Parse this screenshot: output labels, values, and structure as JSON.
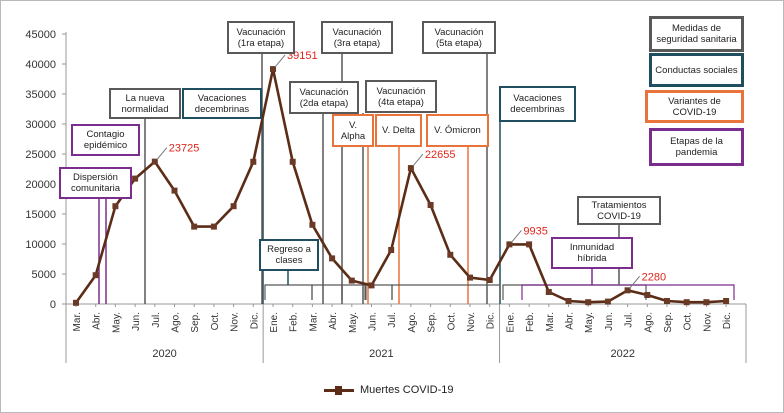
{
  "chart_data": {
    "type": "line",
    "title": "",
    "xlabel": "",
    "ylabel": "",
    "ylim": [
      0,
      45000
    ],
    "yticks": [
      "0",
      "5000",
      "10000",
      "15000",
      "20000",
      "25000",
      "30000",
      "35000",
      "40000",
      "45000"
    ],
    "years": [
      "2020",
      "2021",
      "2022"
    ],
    "months": [
      "Mar.",
      "Abr.",
      "May.",
      "Jun.",
      "Jul.",
      "Ago.",
      "Sep.",
      "Oct.",
      "Nov.",
      "Dic.",
      "Ene.",
      "Feb.",
      "Mar.",
      "Abr.",
      "May.",
      "Jun.",
      "Jul.",
      "Ago.",
      "Sep.",
      "Oct.",
      "Nov.",
      "Dic.",
      "Ene.",
      "Feb.",
      "Mar.",
      "Abr.",
      "May.",
      "Jun.",
      "Jul.",
      "Ago.",
      "Sep.",
      "Oct.",
      "Nov.",
      "Dic."
    ],
    "series": [
      {
        "name": "Muertes COVID-19",
        "color": "#5b2c16",
        "values": [
          200,
          4800,
          16300,
          20900,
          23725,
          18900,
          12900,
          12900,
          16300,
          23700,
          39151,
          23700,
          13200,
          7600,
          3900,
          3100,
          9000,
          22655,
          16500,
          8200,
          4400,
          4000,
          9935,
          9935,
          2000,
          500,
          300,
          400,
          2280,
          1500,
          500,
          300,
          300,
          500
        ]
      }
    ],
    "point_labels": [
      {
        "index": 4,
        "text": "23725",
        "color": "#e0261c"
      },
      {
        "index": 10,
        "text": "39151",
        "color": "#222222"
      },
      {
        "index": 17,
        "text": "22655",
        "color": "#e0261c"
      },
      {
        "index": 22,
        "text": "9935",
        "color": "#e0261c"
      },
      {
        "index": 28,
        "text": "2280",
        "color": "#e0261c"
      }
    ],
    "legend": [
      "Muertes COVID-19"
    ],
    "legend_position": "bottom"
  },
  "annotations": {
    "contagio": "Contagio epidémico",
    "dispersion": "Dispersión comunitaria",
    "nueva_normalidad": "La nueva normalidad",
    "vacaciones_1": "Vacaciones decembrinas",
    "vacunacion_1": "Vacunación (1ra etapa)",
    "vacunacion_2": "Vacunación (2da etapa)",
    "vacunacion_3": "Vacunación (3ra etapa)",
    "vacunacion_4": "Vacunación (4ta etapa)",
    "vacunacion_5": "Vacunación (5ta etapa)",
    "alpha": "V. Alpha",
    "delta": "V. Delta",
    "omicron": "V. Ómicron",
    "vacaciones_2": "Vacaciones decembrinas",
    "regreso": "Regreso a clases",
    "inmunidad": "Inmunidad híbrida",
    "tratamientos": "Tratamientos COVID-19"
  },
  "key": {
    "medidas": "Medidas de seguridad sanitaria",
    "conductas": "Conductas sociales",
    "variantes": "Variantes de COVID-19",
    "etapas": "Etapas de la pandemia"
  },
  "colors": {
    "gray": "#595959",
    "teal": "#1f4e5f",
    "orange": "#e8743b",
    "purple": "#7b2d8e",
    "line": "#5b2c16"
  }
}
